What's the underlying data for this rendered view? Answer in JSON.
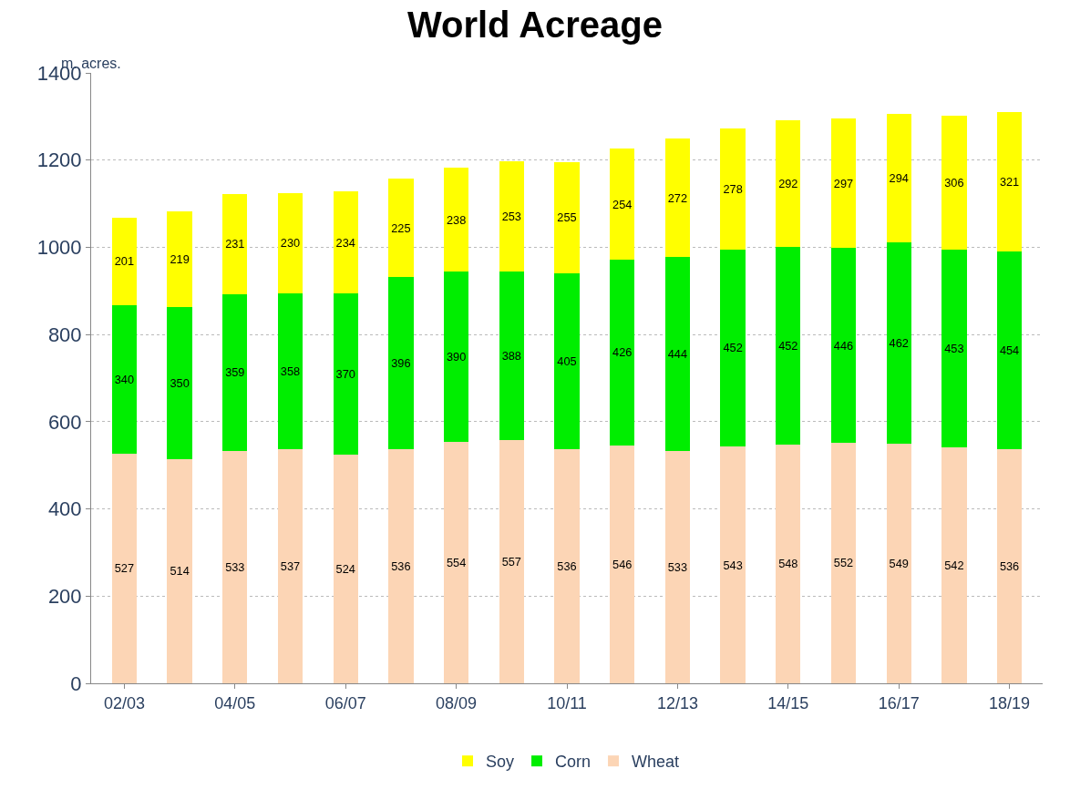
{
  "chart_data": {
    "type": "bar",
    "title": "World Acreage",
    "ylabel": "m. acres.",
    "categories": [
      "02/03",
      null,
      "04/05",
      null,
      "06/07",
      null,
      "08/09",
      null,
      "10/11",
      null,
      "12/13",
      null,
      "14/15",
      null,
      "16/17",
      null,
      "18/19"
    ],
    "stacked": true,
    "data_labels": true,
    "legend": "bottom",
    "grid": "y",
    "ylim": [
      0,
      1400
    ],
    "yticks": [
      0,
      200,
      400,
      600,
      800,
      1000,
      1200,
      1400
    ],
    "series": [
      {
        "name": "Wheat",
        "color": "#fcd5b5",
        "values": [
          527,
          514,
          533,
          537,
          524,
          536,
          554,
          557,
          536,
          546,
          533,
          543,
          548,
          552,
          549,
          542,
          536
        ]
      },
      {
        "name": "Corn",
        "color": "#00ee00",
        "values": [
          340,
          350,
          359,
          358,
          370,
          396,
          390,
          388,
          405,
          426,
          444,
          452,
          452,
          446,
          462,
          453,
          454
        ]
      },
      {
        "name": "Soy",
        "color": "#ffff00",
        "values": [
          201,
          219,
          231,
          230,
          234,
          225,
          238,
          253,
          255,
          254,
          272,
          278,
          292,
          297,
          294,
          306,
          321
        ]
      }
    ]
  }
}
